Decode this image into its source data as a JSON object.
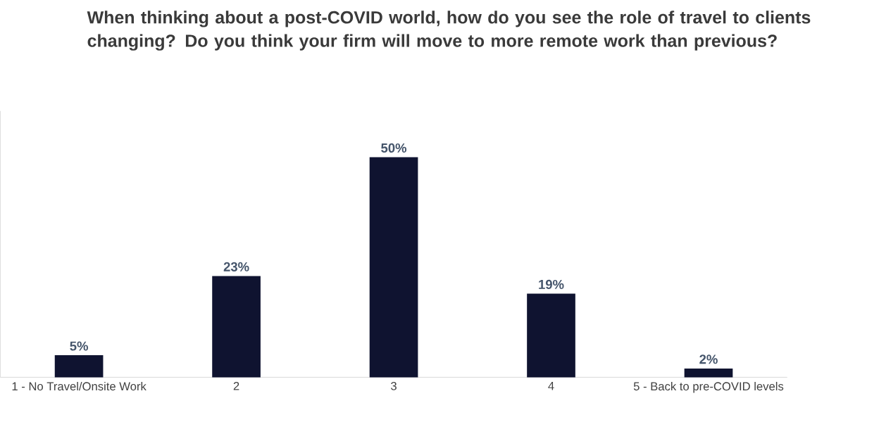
{
  "chart_data": {
    "type": "bar",
    "title": "When thinking about a post-COVID world, how do you see the role of travel to clients changing? Do you think your firm will move to more remote work than previous?",
    "categories": [
      "1 - No Travel/Onsite Work",
      "2",
      "3",
      "4",
      "5 - Back to pre-COVID levels"
    ],
    "values": [
      5,
      23,
      50,
      19,
      2
    ],
    "value_labels": [
      "5%",
      "23%",
      "50%",
      "19%",
      "2%"
    ],
    "color": "#0f1330",
    "relative": false
  }
}
